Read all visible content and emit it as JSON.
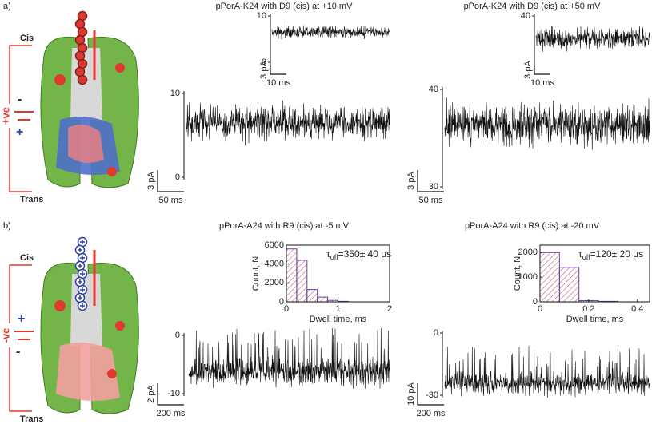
{
  "panels": [
    {
      "label": "a)",
      "cis": "Cis",
      "trans": "Trans",
      "polarity": "+ve",
      "upper_sign": "-",
      "lower_sign": "+",
      "traces": [
        {
          "title": "pPorA-K24 with D9 (cis) at +10 mV",
          "inset": {
            "ylim": [
              0,
              10
            ],
            "yticks": [
              10,
              0
            ],
            "yscale": "3 pA",
            "xscale": "10 ms"
          },
          "main": {
            "ylim": [
              0,
              10
            ],
            "yticks": [
              10,
              0
            ],
            "yscale": "3 pA",
            "xscale": "50 ms"
          }
        },
        {
          "title": "pPorA-K24 with D9 (cis) at +50 mV",
          "inset": {
            "yticks": [
              40
            ],
            "yscale": "3 pA",
            "xscale": "10 ms"
          },
          "main": {
            "ylim": [
              30,
              40
            ],
            "yticks": [
              40,
              30
            ],
            "yscale": "3 pA",
            "xscale": "50 ms"
          }
        }
      ]
    },
    {
      "label": "b)",
      "cis": "Cis",
      "trans": "Trans",
      "polarity": "-ve",
      "upper_sign": "+",
      "lower_sign": "-",
      "traces": [
        {
          "title": "pPorA-A24 with R9 (cis) at -5 mV",
          "histogram": {
            "type": "histogram",
            "bins": [
              0,
              0.2,
              0.4,
              0.6,
              0.8,
              1.0,
              1.2
            ],
            "values": [
              5600,
              4400,
              1300,
              500,
              150,
              50
            ],
            "xlim": [
              0,
              2
            ],
            "xticks": [
              0,
              1,
              2
            ],
            "ylim": [
              0,
              6000
            ],
            "yticks": [
              0,
              2000,
              4000,
              6000
            ],
            "xlabel": "Dwell time, ms",
            "ylabel": "Count, N",
            "tau_symbol": "τ",
            "tau_sub": "off",
            "tau_text": "=350± 40 μs"
          },
          "main": {
            "ylim": [
              -10,
              0
            ],
            "yticks": [
              0,
              -10
            ],
            "yscale": "2 pA",
            "xscale": "200 ms"
          }
        },
        {
          "title": "pPorA-A24 with R9 (cis) at -20 mV",
          "histogram": {
            "type": "histogram",
            "bins": [
              0,
              0.08,
              0.16,
              0.24,
              0.32
            ],
            "values": [
              2000,
              1400,
              50,
              20
            ],
            "xlim": [
              0,
              0.45
            ],
            "xticks": [
              0,
              0.2,
              0.4
            ],
            "ylim": [
              0,
              2300
            ],
            "yticks": [
              0,
              1000,
              2000
            ],
            "xlabel": "Dwell time, ms",
            "ylabel": "Count, N",
            "tau_symbol": "τ",
            "tau_sub": "off",
            "tau_text": "=120± 20 μs"
          },
          "main": {
            "ylim": [
              -30,
              0
            ],
            "yticks": [
              0,
              -30
            ],
            "yscale": "10 pA",
            "xscale": "200 ms"
          }
        }
      ]
    }
  ]
}
